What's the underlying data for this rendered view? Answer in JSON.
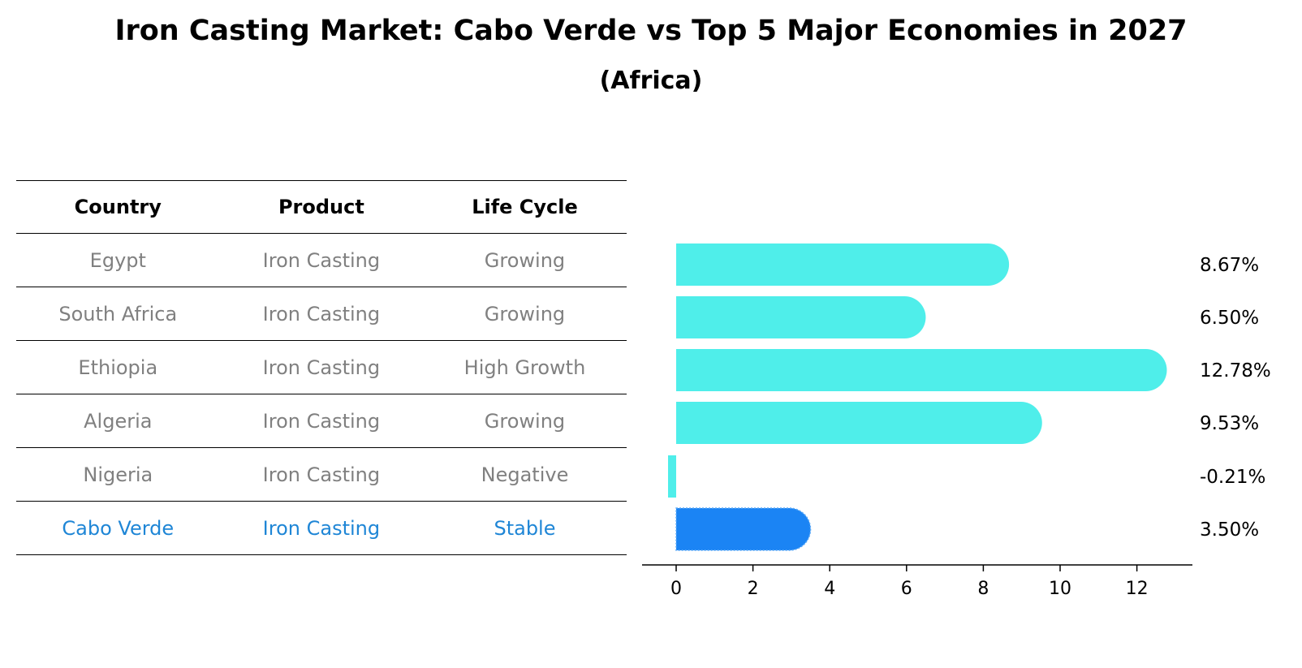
{
  "title": "Iron Casting Market: Cabo Verde vs Top 5 Major Economies in 2027",
  "subtitle": "(Africa)",
  "table": {
    "headers": [
      "Country",
      "Product",
      "Life Cycle"
    ],
    "rows": [
      {
        "country": "Egypt",
        "product": "Iron Casting",
        "life_cycle": "Growing"
      },
      {
        "country": "South Africa",
        "product": "Iron Casting",
        "life_cycle": "Growing"
      },
      {
        "country": "Ethiopia",
        "product": "Iron Casting",
        "life_cycle": "High Growth"
      },
      {
        "country": "Algeria",
        "product": "Iron Casting",
        "life_cycle": "Growing"
      },
      {
        "country": "Nigeria",
        "product": "Iron Casting",
        "life_cycle": "Negative"
      },
      {
        "country": "Cabo Verde",
        "product": "Iron Casting",
        "life_cycle": "Stable"
      }
    ]
  },
  "chart_data": {
    "type": "bar",
    "orientation": "horizontal",
    "categories": [
      "Egypt",
      "South Africa",
      "Ethiopia",
      "Algeria",
      "Nigeria",
      "Cabo Verde"
    ],
    "values": [
      8.67,
      6.5,
      12.78,
      9.53,
      -0.21,
      3.5
    ],
    "value_labels": [
      "8.67%",
      "6.50%",
      "12.78%",
      "9.53%",
      "-0.21%",
      "3.50%"
    ],
    "highlight_index": 5,
    "xlim": [
      -0.9,
      13.5
    ],
    "xticks": [
      0,
      2,
      4,
      6,
      8,
      10,
      12
    ],
    "xlabel": "",
    "ylabel": "",
    "grid": false
  },
  "colors": {
    "bar": "#4feeea",
    "highlight_bar": "#1b84f4",
    "highlight_text": "#1f86d6",
    "muted_text": "#808080",
    "text": "#000000"
  }
}
